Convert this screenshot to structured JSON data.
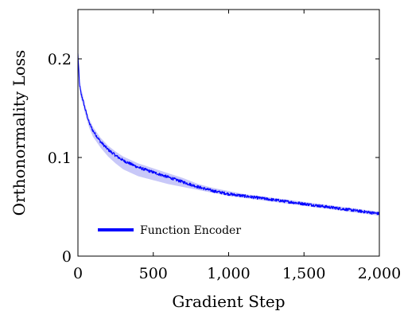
{
  "chart_data": {
    "type": "line",
    "title": "",
    "xlabel": "Gradient Step",
    "ylabel": "Orthonormality Loss",
    "xlim": [
      0,
      2000
    ],
    "ylim": [
      0,
      0.25
    ],
    "xticks": [
      0,
      500,
      1000,
      1500,
      2000
    ],
    "xtick_labels": [
      "0",
      "500",
      "1,000",
      "1,500",
      "2,000"
    ],
    "yticks": [
      0,
      0.1,
      0.2
    ],
    "ytick_labels": [
      "0",
      "0.1",
      "0.2"
    ],
    "grid": false,
    "legend_position": "bottom-left",
    "series": [
      {
        "name": "Function Encoder",
        "color": "#0000ff",
        "band_color": "#9a9af2",
        "x": [
          0,
          5,
          10,
          20,
          30,
          50,
          75,
          100,
          150,
          200,
          250,
          300,
          400,
          500,
          600,
          700,
          800,
          900,
          1000,
          1100,
          1200,
          1300,
          1400,
          1500,
          1600,
          1700,
          1800,
          1900,
          2000
        ],
        "y": [
          0.205,
          0.19,
          0.175,
          0.165,
          0.16,
          0.148,
          0.135,
          0.127,
          0.116,
          0.108,
          0.102,
          0.097,
          0.09,
          0.085,
          0.08,
          0.075,
          0.07,
          0.066,
          0.063,
          0.061,
          0.059,
          0.057,
          0.055,
          0.053,
          0.051,
          0.049,
          0.047,
          0.045,
          0.043
        ],
        "lower": [
          0.2,
          0.185,
          0.17,
          0.16,
          0.155,
          0.143,
          0.13,
          0.121,
          0.11,
          0.101,
          0.094,
          0.088,
          0.081,
          0.077,
          0.073,
          0.07,
          0.067,
          0.064,
          0.061,
          0.059,
          0.057,
          0.055,
          0.053,
          0.051,
          0.049,
          0.047,
          0.045,
          0.043,
          0.041
        ],
        "upper": [
          0.21,
          0.195,
          0.18,
          0.17,
          0.165,
          0.152,
          0.139,
          0.131,
          0.12,
          0.112,
          0.106,
          0.101,
          0.094,
          0.089,
          0.084,
          0.079,
          0.073,
          0.069,
          0.066,
          0.063,
          0.061,
          0.059,
          0.057,
          0.055,
          0.053,
          0.051,
          0.049,
          0.047,
          0.045
        ]
      }
    ]
  }
}
